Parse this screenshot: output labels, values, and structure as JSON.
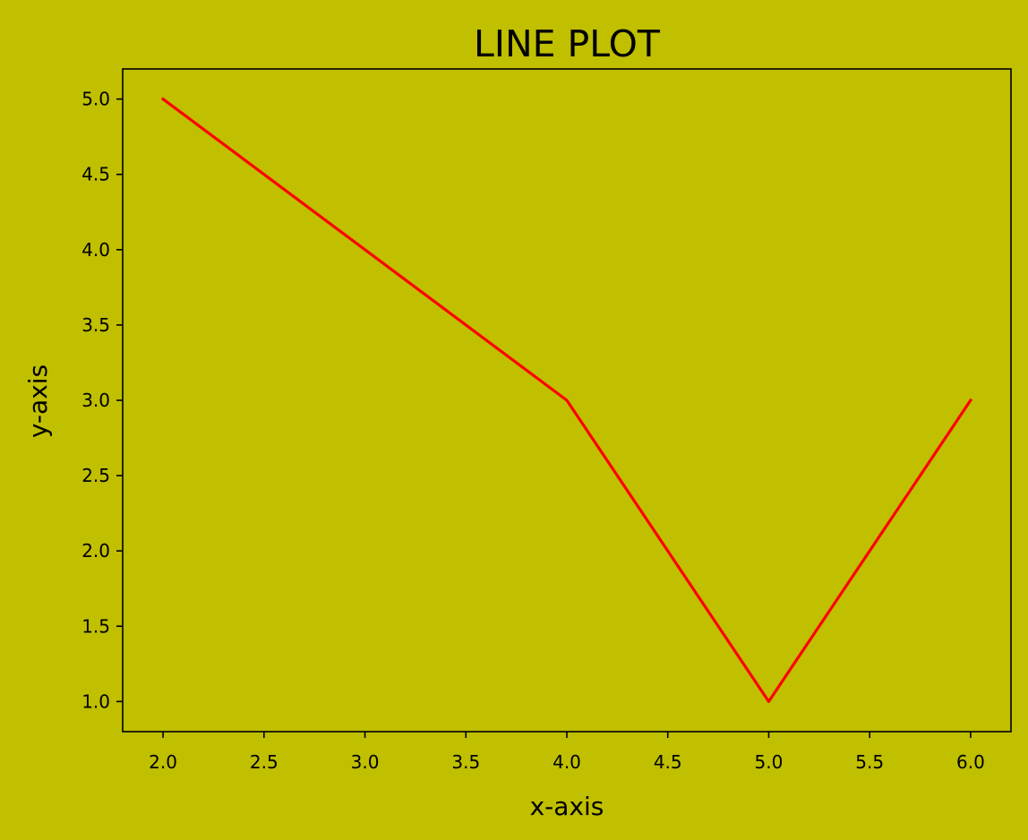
{
  "colors": {
    "figure_background": "#c0bf00",
    "axes_background": "#c0bf00",
    "line": "#ff0000",
    "axes_edge": "#000000",
    "text": "#000000"
  },
  "chart_data": {
    "type": "line",
    "title": "LINE PLOT",
    "xlabel": "x-axis",
    "ylabel": "y-axis",
    "xlim": [
      1.8,
      6.2
    ],
    "ylim": [
      0.8,
      5.2
    ],
    "grid": false,
    "xticks": [
      2.0,
      2.5,
      3.0,
      3.5,
      4.0,
      4.5,
      5.0,
      5.5,
      6.0
    ],
    "yticks": [
      1.0,
      1.5,
      2.0,
      2.5,
      3.0,
      3.5,
      4.0,
      4.5,
      5.0
    ],
    "xtick_labels": [
      "2.0",
      "2.5",
      "3.0",
      "3.5",
      "4.0",
      "4.5",
      "5.0",
      "5.5",
      "6.0"
    ],
    "ytick_labels": [
      "1.0",
      "1.5",
      "2.0",
      "2.5",
      "3.0",
      "3.5",
      "4.0",
      "4.5",
      "5.0"
    ],
    "series": [
      {
        "color": "#ff0000",
        "x": [
          2,
          4,
          5,
          6
        ],
        "y": [
          5,
          3,
          1,
          3
        ]
      }
    ]
  }
}
